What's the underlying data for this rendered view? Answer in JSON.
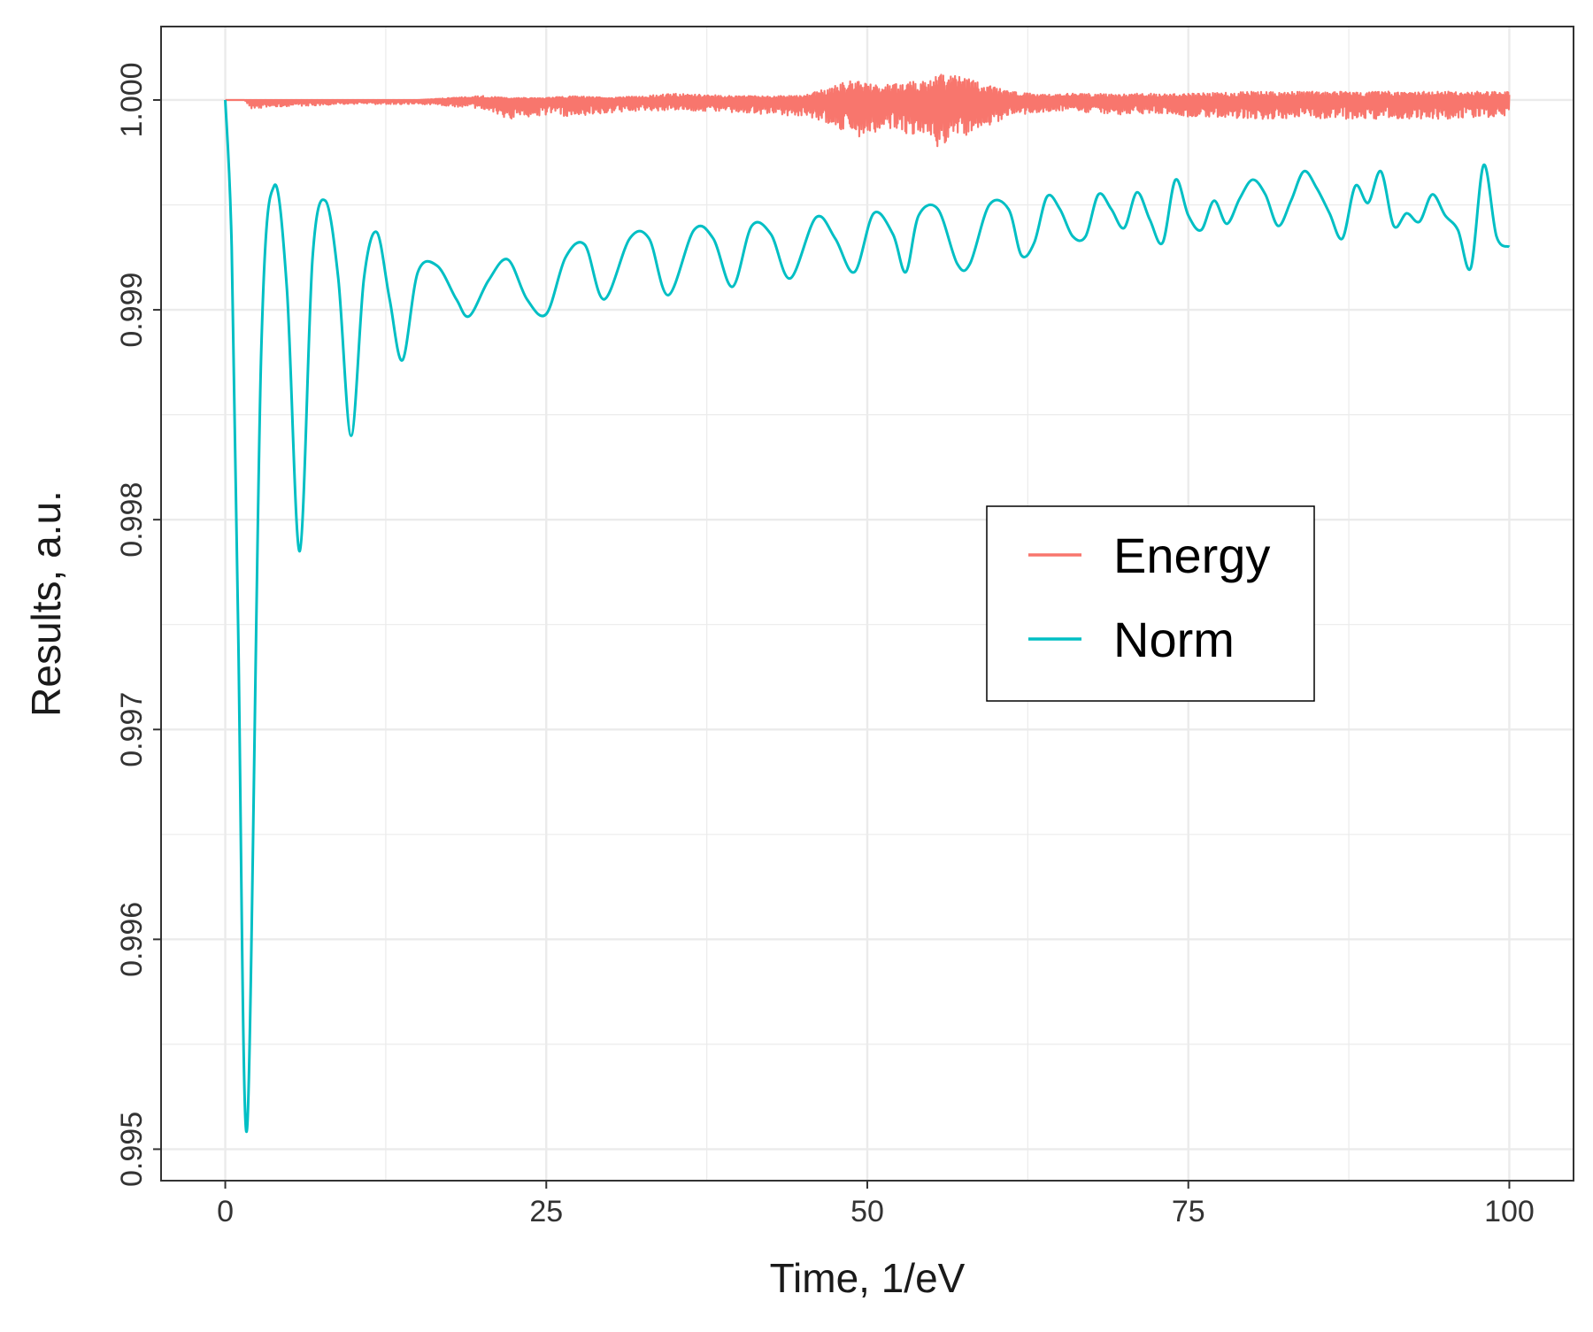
{
  "chart_data": {
    "type": "line",
    "title": "",
    "xlabel": "Time, 1/eV",
    "ylabel": "Results, a.u.",
    "xlim": [
      -5,
      105
    ],
    "ylim": [
      0.99485,
      1.00035
    ],
    "x_ticks": [
      0,
      25,
      50,
      75,
      100
    ],
    "x_tick_labels": [
      "0",
      "25",
      "50",
      "75",
      "100"
    ],
    "y_ticks": [
      0.995,
      0.996,
      0.997,
      0.998,
      0.999,
      1.0
    ],
    "y_tick_labels": [
      "0.995",
      "0.996",
      "0.997",
      "0.998",
      "0.999",
      "1.000"
    ],
    "grid": true,
    "legend": {
      "position": "center-right",
      "entries": [
        "Energy",
        "Norm"
      ]
    },
    "series": [
      {
        "name": "Energy",
        "color": "#F8766D",
        "x": [
          0,
          1.5,
          2,
          5,
          10,
          15,
          20,
          22,
          25,
          27,
          30,
          35,
          40,
          45,
          47,
          49,
          51,
          53,
          55,
          55.5,
          57,
          59,
          61,
          63,
          65,
          70,
          75,
          80,
          85,
          90,
          95,
          100
        ],
        "y_upper": [
          1.0,
          1.0,
          1.0,
          1.0,
          1.0,
          1.0,
          1.00002,
          1.00001,
          1.00001,
          1.00002,
          1.00001,
          1.00003,
          1.00002,
          1.00002,
          1.00006,
          1.0001,
          1.00007,
          1.00009,
          1.0001,
          1.00012,
          1.00012,
          1.00008,
          1.00004,
          1.00003,
          1.00003,
          1.00003,
          1.00003,
          1.00004,
          1.00004,
          1.00004,
          1.00004,
          1.00004
        ],
        "y_lower": [
          1.0,
          1.0,
          0.99996,
          0.99997,
          0.99998,
          0.99998,
          0.99996,
          0.99991,
          0.99993,
          0.99992,
          0.99994,
          0.99995,
          0.99994,
          0.99992,
          0.99988,
          0.99982,
          0.99985,
          0.99984,
          0.99983,
          0.99976,
          0.9998,
          0.99986,
          0.99992,
          0.99994,
          0.99995,
          0.99993,
          0.99992,
          0.99991,
          0.99991,
          0.99991,
          0.99991,
          0.99992
        ]
      },
      {
        "name": "Norm",
        "color": "#00BFC4",
        "x": [
          0,
          0.5,
          1,
          1.7,
          2.8,
          3.8,
          4.8,
          5.8,
          6.8,
          7.8,
          8.8,
          9.8,
          10.8,
          11.8,
          12.8,
          13.8,
          15,
          16.5,
          18,
          19,
          20.5,
          22,
          23.5,
          25,
          26.5,
          28,
          29.5,
          31.5,
          33,
          34.5,
          36.5,
          38,
          39.5,
          41,
          42.5,
          44,
          46,
          47.5,
          49,
          50.5,
          52,
          53,
          54,
          55.5,
          57,
          58,
          59.5,
          61,
          62,
          63,
          64,
          65,
          66,
          67,
          68,
          69,
          70,
          71,
          72,
          73,
          74,
          75,
          76,
          77,
          78,
          79,
          80,
          81,
          82,
          83,
          84,
          85,
          86,
          87,
          88,
          89,
          90,
          91,
          92,
          93,
          94,
          95,
          96,
          97,
          98,
          99,
          100
        ],
        "y": [
          1.0,
          0.9993,
          0.9975,
          0.9951,
          0.9988,
          0.99959,
          0.9991,
          0.99785,
          0.99925,
          0.99952,
          0.99915,
          0.9984,
          0.99915,
          0.99937,
          0.99905,
          0.99876,
          0.99918,
          0.99921,
          0.99905,
          0.99897,
          0.99914,
          0.99924,
          0.99905,
          0.99898,
          0.99925,
          0.99931,
          0.99905,
          0.99934,
          0.99934,
          0.99907,
          0.99938,
          0.99934,
          0.99911,
          0.9994,
          0.99936,
          0.99915,
          0.99944,
          0.99934,
          0.99918,
          0.99946,
          0.99936,
          0.99918,
          0.99945,
          0.99948,
          0.99922,
          0.99922,
          0.9995,
          0.99948,
          0.99926,
          0.99932,
          0.99954,
          0.99948,
          0.99935,
          0.99935,
          0.99955,
          0.99948,
          0.99939,
          0.99956,
          0.99943,
          0.99932,
          0.99962,
          0.99945,
          0.99938,
          0.99952,
          0.99941,
          0.99953,
          0.99962,
          0.99955,
          0.9994,
          0.99952,
          0.99966,
          0.99958,
          0.99946,
          0.99934,
          0.99959,
          0.99951,
          0.99966,
          0.9994,
          0.99946,
          0.99942,
          0.99955,
          0.99945,
          0.99938,
          0.9992,
          0.99969,
          0.99935,
          0.9993
        ]
      }
    ]
  }
}
